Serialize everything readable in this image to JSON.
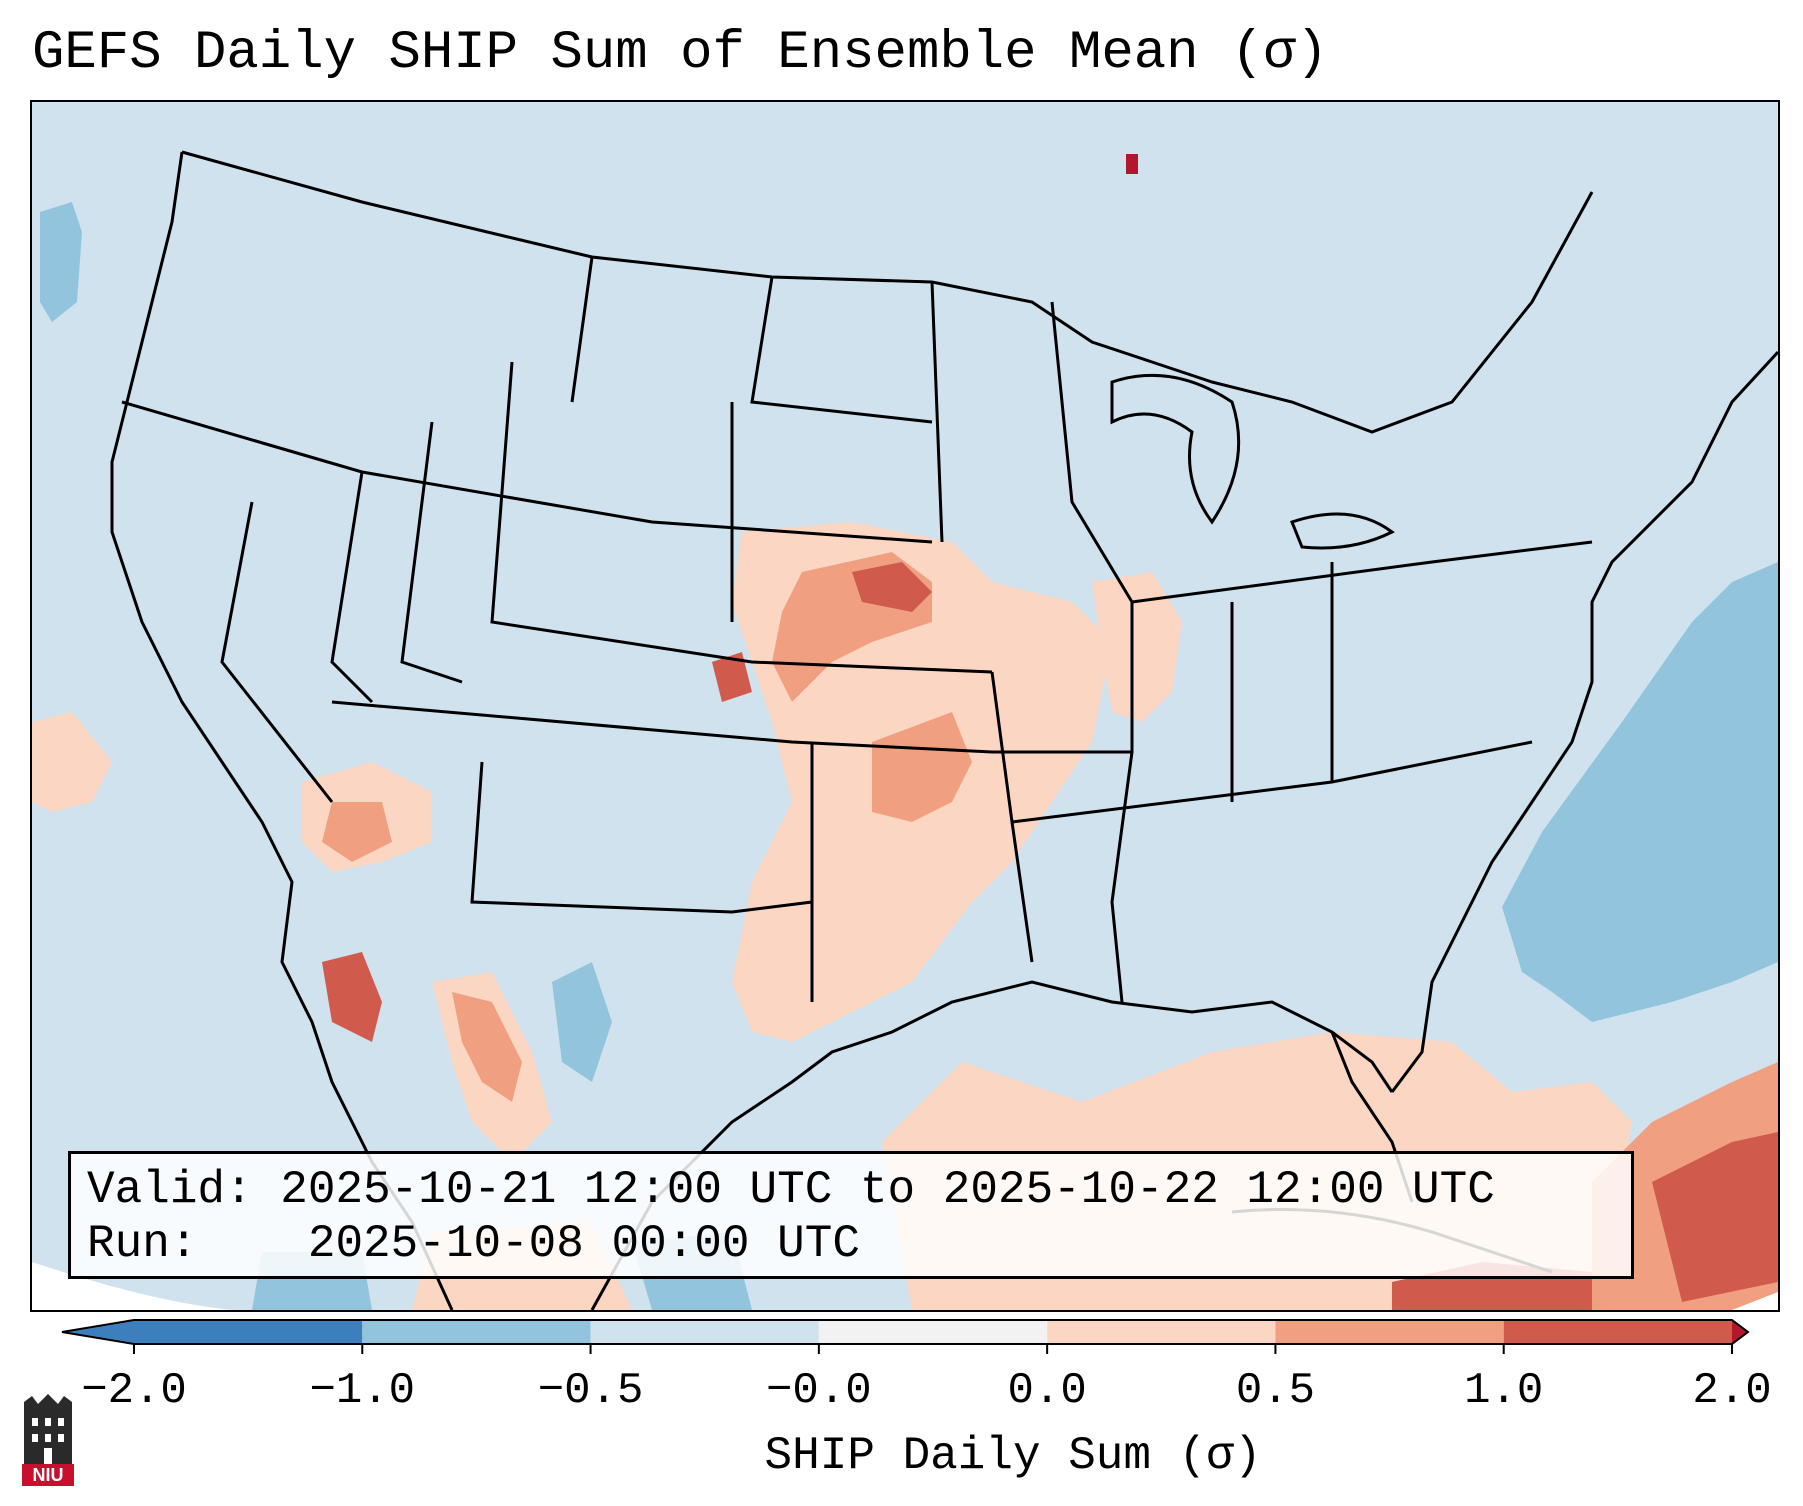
{
  "title": "GEFS Daily SHIP Sum of Ensemble Mean (σ)",
  "info": {
    "valid_label": "Valid:",
    "valid_value": "2025-10-21 12:00 UTC to 2025-10-22 12:00 UTC",
    "run_label": "Run:",
    "run_value": "2025-10-08 00:00 UTC"
  },
  "colorbar": {
    "label": "SHIP Daily Sum (σ)",
    "ticks": [
      "−2.0",
      "−1.0",
      "−0.5",
      "−0.0",
      "0.0",
      "0.5",
      "1.0",
      "2.0"
    ],
    "colors": [
      "#3d7fbd",
      "#93c4de",
      "#cfe2ee",
      "#f2f2f2",
      "#fbd6c2",
      "#f0a080",
      "#d05b4d",
      "#b2182b"
    ],
    "extend": "both"
  },
  "palette": {
    "ocean_background": "#cfe2ee",
    "land_border": "#000000"
  },
  "logo": {
    "text": "NIU",
    "color": "#c8102e"
  }
}
